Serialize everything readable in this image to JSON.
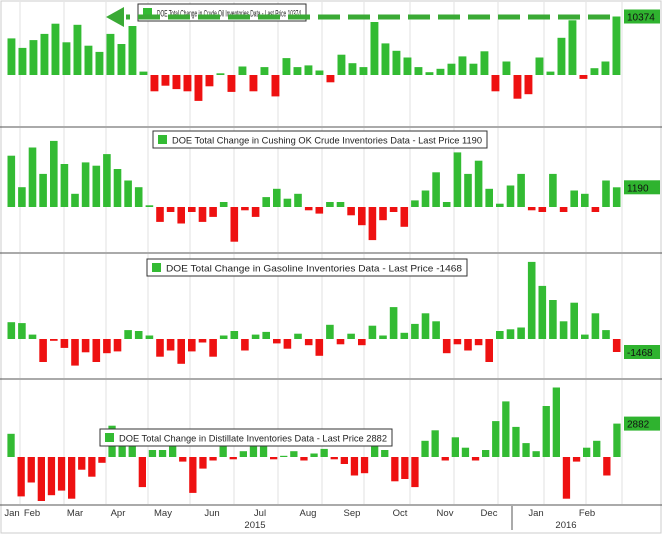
{
  "chart_data": [
    {
      "type": "bar",
      "title": "DOE Total Change in Crude Oil Inventories Data - Last Price 10374",
      "last_price_label": "10374",
      "ylim": [
        -9000,
        13000
      ],
      "values": [
        6500,
        4800,
        6200,
        7300,
        9100,
        5800,
        8900,
        5200,
        4100,
        7300,
        5500,
        8700,
        600,
        -2900,
        -1900,
        -2500,
        -2900,
        -4600,
        -2000,
        300,
        -3000,
        1500,
        -2900,
        1400,
        -3800,
        3000,
        1400,
        1700,
        800,
        -1300,
        3600,
        2100,
        1400,
        9400,
        5600,
        4300,
        3100,
        1400,
        500,
        1100,
        2000,
        3300,
        2000,
        4200,
        -2900,
        2400,
        -4200,
        -3400,
        3100,
        600,
        6600,
        9700,
        -700,
        1200,
        2400,
        10374
      ],
      "colors": {
        "positive": "#33bb33",
        "negative": "#ee1111"
      },
      "grid": "vertical"
    },
    {
      "type": "bar",
      "title": "DOE Total Change in Cushing OK Crude Inventories Data - Last Price 1190",
      "last_price_label": "1190",
      "ylim": [
        -2500,
        5000
      ],
      "values": [
        3100,
        1200,
        3600,
        2000,
        4000,
        2600,
        800,
        2700,
        2500,
        3200,
        2300,
        1600,
        1200,
        100,
        -900,
        -300,
        -1000,
        -300,
        -900,
        -600,
        300,
        -2100,
        -200,
        -600,
        600,
        1100,
        500,
        800,
        -200,
        -400,
        300,
        300,
        -500,
        -1100,
        -2000,
        -800,
        -300,
        -1200,
        400,
        1000,
        2100,
        300,
        3300,
        2000,
        2800,
        1100,
        200,
        1300,
        2000,
        -200,
        -300,
        2000,
        -300,
        1000,
        800,
        -300,
        1600,
        1190
      ]
    },
    {
      "type": "bar",
      "title": "DOE Total Change in Gasoline Inventories Data - Last Price -1468",
      "last_price_label": "-1468",
      "ylim": [
        -4000,
        10000
      ],
      "values": [
        1900,
        1800,
        500,
        -2600,
        -200,
        -1000,
        -3000,
        -1500,
        -2600,
        -1600,
        -1400,
        1000,
        900,
        400,
        -2000,
        -1300,
        -2800,
        -1400,
        -400,
        -2000,
        400,
        900,
        -1300,
        500,
        800,
        -500,
        -1100,
        600,
        -700,
        -1900,
        1600,
        -600,
        600,
        -700,
        1500,
        400,
        3600,
        700,
        1700,
        2900,
        2000,
        -1600,
        -600,
        -1300,
        -700,
        -2600,
        900,
        1100,
        1300,
        8700,
        6000,
        4400,
        2000,
        4100,
        500,
        2900,
        1000,
        -1468
      ]
    },
    {
      "type": "bar",
      "title": "DOE Total Change in Distillate Inventories Data - Last Price 2882",
      "last_price_label": "2882",
      "ylim": [
        -4500,
        6200
      ],
      "values": [
        2000,
        -3400,
        -2200,
        -3800,
        -3300,
        -2900,
        -3600,
        -1100,
        -1700,
        -500,
        2700,
        1000,
        1800,
        -2600,
        600,
        600,
        1700,
        -400,
        -3100,
        -1000,
        -300,
        1100,
        -200,
        500,
        1000,
        1200,
        -200,
        100,
        500,
        -300,
        300,
        700,
        -200,
        -600,
        -1600,
        -1400,
        1200,
        600,
        -2100,
        -1900,
        -2600,
        1400,
        2300,
        -300,
        1700,
        800,
        -300,
        600,
        3100,
        4800,
        2600,
        1200,
        500,
        4400,
        6000,
        -3600,
        -400,
        800,
        1400,
        -1600,
        2882
      ]
    }
  ],
  "x_axis": {
    "months": [
      "Jan",
      "Feb",
      "Mar",
      "Apr",
      "May",
      "Jun",
      "Jul",
      "Aug",
      "Sep",
      "Oct",
      "Nov",
      "Dec",
      "Jan",
      "Feb"
    ],
    "years": [
      "2015",
      "2016"
    ]
  }
}
